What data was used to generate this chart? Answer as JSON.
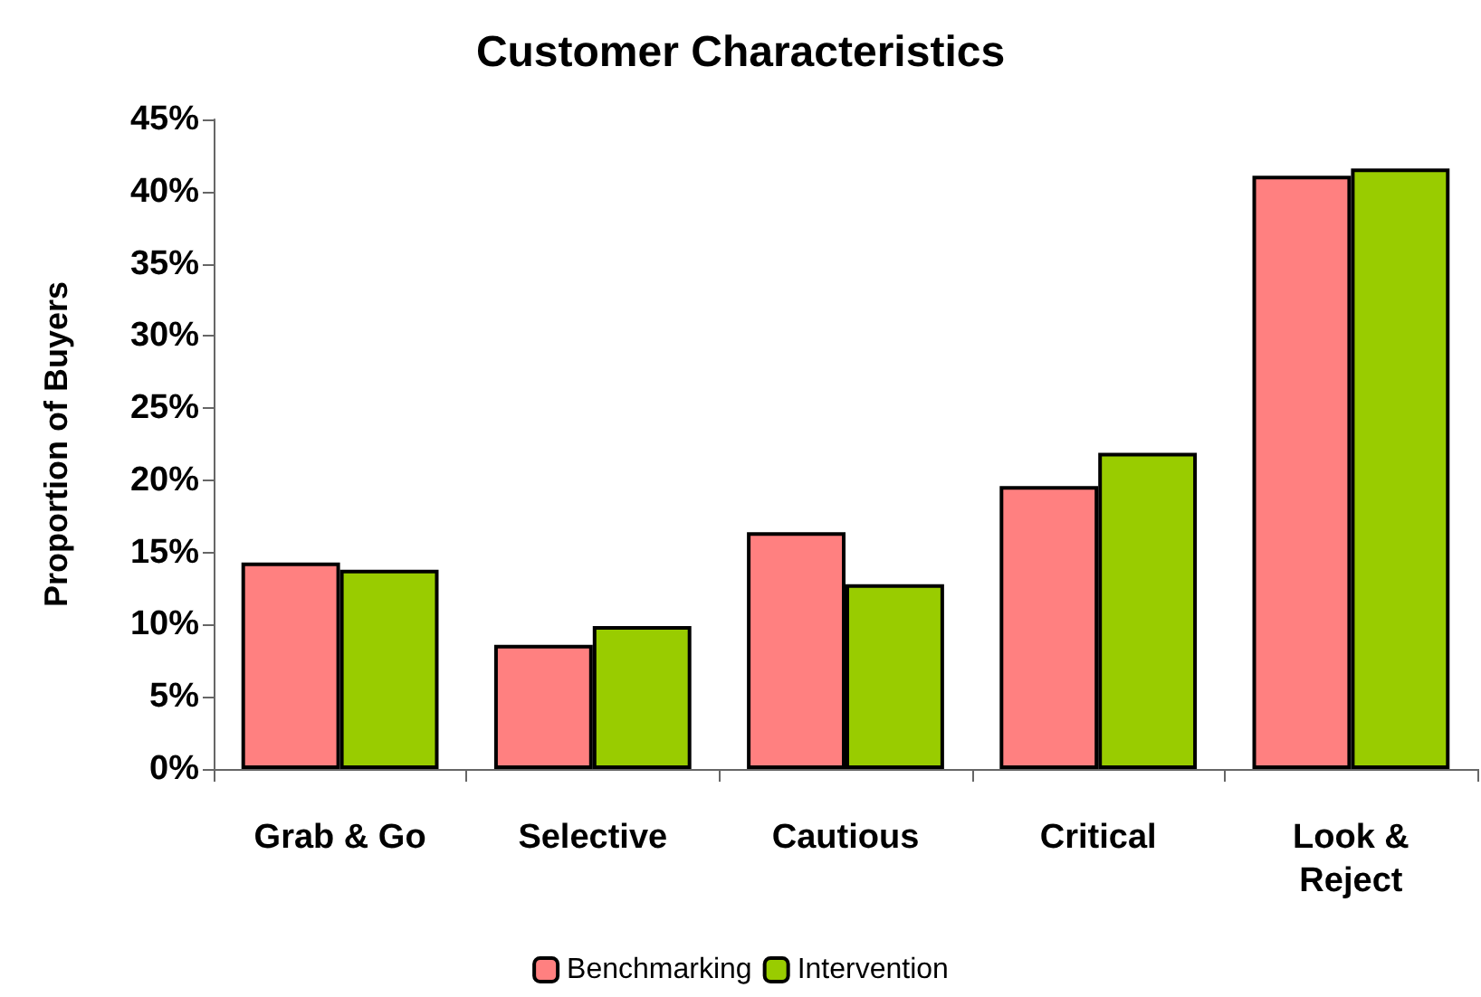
{
  "chart_data": {
    "type": "bar",
    "title": "Customer Characteristics",
    "ylabel": "Proportion of Buyers",
    "categories": [
      "Grab & Go",
      "Selective",
      "Cautious",
      "Critical",
      "Look &\nReject"
    ],
    "series": [
      {
        "name": "Benchmarking",
        "color": "#ff8080",
        "values": [
          14.3,
          8.6,
          16.4,
          19.6,
          41.1
        ]
      },
      {
        "name": "Intervention",
        "color": "#99cc00",
        "values": [
          13.8,
          9.9,
          12.8,
          21.9,
          41.6
        ]
      }
    ],
    "ylim": [
      0,
      45
    ],
    "yticks": [
      {
        "value": 0,
        "label": "0%"
      },
      {
        "value": 5,
        "label": "5%"
      },
      {
        "value": 10,
        "label": "10%"
      },
      {
        "value": 15,
        "label": "15%"
      },
      {
        "value": 20,
        "label": "20%"
      },
      {
        "value": 25,
        "label": "25%"
      },
      {
        "value": 30,
        "label": "30%"
      },
      {
        "value": 35,
        "label": "35%"
      },
      {
        "value": 40,
        "label": "40%"
      },
      {
        "value": 45,
        "label": "45%"
      }
    ],
    "grid": false,
    "legend": "bottom"
  }
}
